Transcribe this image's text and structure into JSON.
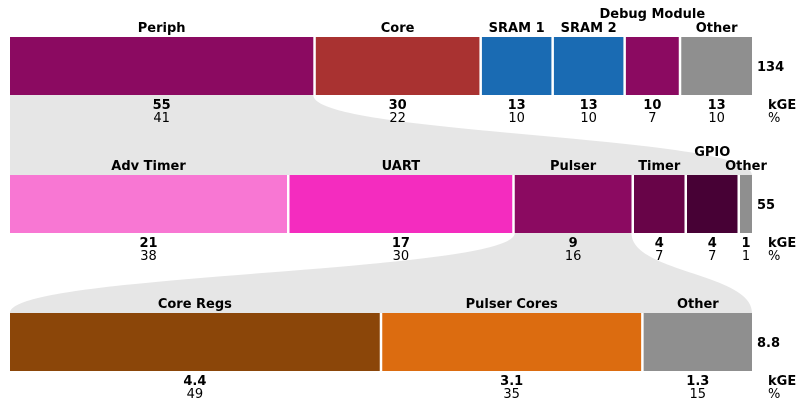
{
  "chart_data": {
    "type": "bar",
    "value_unit_label": "kGE",
    "percent_unit_label": "%",
    "rows": [
      {
        "total": "134",
        "segments": [
          {
            "label": "Periph",
            "kge": "55",
            "pct": "41",
            "color": "#8b0a61"
          },
          {
            "label": "Core",
            "kge": "30",
            "pct": "22",
            "color": "#a93231"
          },
          {
            "label": "SRAM 1",
            "kge": "13",
            "pct": "10",
            "color": "#1a6bb3"
          },
          {
            "label": "SRAM 2",
            "kge": "13",
            "pct": "10",
            "color": "#1a6bb3"
          },
          {
            "label": "Debug Module",
            "kge": "10",
            "pct": "7",
            "color": "#8b0a61"
          },
          {
            "label": "Other",
            "kge": "13",
            "pct": "10",
            "color": "#8f8f8f"
          }
        ]
      },
      {
        "total": "55",
        "segments": [
          {
            "label": "Adv Timer",
            "kge": "21",
            "pct": "38",
            "color": "#f877d3"
          },
          {
            "label": "UART",
            "kge": "17",
            "pct": "30",
            "color": "#f42cbf"
          },
          {
            "label": "Pulser",
            "kge": "9",
            "pct": "16",
            "color": "#8b0a61"
          },
          {
            "label": "Timer",
            "kge": "4",
            "pct": "7",
            "color": "#680448"
          },
          {
            "label": "GPIO",
            "kge": "4",
            "pct": "7",
            "color": "#470135"
          },
          {
            "label": "Other",
            "kge": "1",
            "pct": "1",
            "color": "#8f8f8f"
          }
        ]
      },
      {
        "total": "8.8",
        "segments": [
          {
            "label": "Core Regs",
            "kge": "4.4",
            "pct": "49",
            "color": "#8b4609"
          },
          {
            "label": "Pulser Cores",
            "kge": "3.1",
            "pct": "35",
            "color": "#dc6c10"
          },
          {
            "label": "Other",
            "kge": "1.3",
            "pct": "15",
            "color": "#8f8f8f"
          }
        ]
      }
    ],
    "zoom_links": [
      {
        "from_row": 0,
        "from_segment": "Periph",
        "to_row": 1
      },
      {
        "from_row": 1,
        "from_segment": "Pulser",
        "to_row": 2
      }
    ],
    "link_color": "#e6e6e6"
  }
}
